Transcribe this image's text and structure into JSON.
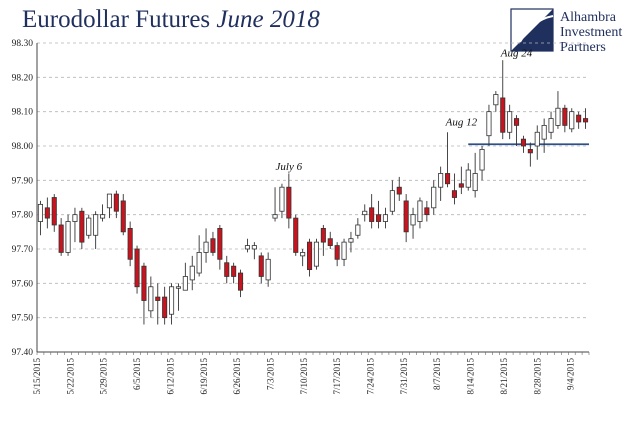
{
  "header": {
    "title_main": "Eurodollar Futures",
    "title_em": "June 2018"
  },
  "logo": {
    "line1": "Alhambra",
    "line2": "Investment",
    "line3": "Partners"
  },
  "colors": {
    "up": "#ffffff",
    "down": "#c8141e",
    "wick": "#333333",
    "grid": "#b5b5b5",
    "refline": "#2f4f8a",
    "text": "#1f2f5e"
  },
  "chart_data": {
    "type": "candlestick",
    "ylim": [
      97.4,
      98.3
    ],
    "yticks": [
      "97.40",
      "97.50",
      "97.60",
      "97.70",
      "97.80",
      "97.90",
      "98.00",
      "98.10",
      "98.20",
      "98.30"
    ],
    "xlabels": [
      "5/15/2015",
      "5/22/2015",
      "5/29/2015",
      "6/5/2015",
      "6/12/2015",
      "6/19/2015",
      "6/26/2015",
      "7/3/2015",
      "7/10/2015",
      "7/17/2015",
      "7/24/2015",
      "7/31/2015",
      "8/7/2015",
      "8/14/2015",
      "8/21/2015",
      "8/28/2015",
      "9/4/2015"
    ],
    "reference_line": {
      "y": 98.005,
      "x_from_session": 62
    },
    "annotations": [
      {
        "text": "July 6",
        "session": 36,
        "y": 97.93
      },
      {
        "text": "Aug 12",
        "session": 61,
        "y": 98.06
      },
      {
        "text": "Aug 24",
        "session": 69,
        "y": 98.26
      }
    ],
    "candles": [
      {
        "o": 97.78,
        "h": 97.84,
        "l": 97.74,
        "c": 97.83
      },
      {
        "o": 97.82,
        "h": 97.85,
        "l": 97.76,
        "c": 97.79
      },
      {
        "o": 97.85,
        "h": 97.86,
        "l": 97.75,
        "c": 97.77
      },
      {
        "o": 97.77,
        "h": 97.79,
        "l": 97.68,
        "c": 97.69
      },
      {
        "o": 97.69,
        "h": 97.8,
        "l": 97.68,
        "c": 97.78
      },
      {
        "o": 97.78,
        "h": 97.82,
        "l": 97.72,
        "c": 97.8
      },
      {
        "o": 97.81,
        "h": 97.82,
        "l": 97.7,
        "c": 97.72
      },
      {
        "o": 97.74,
        "h": 97.8,
        "l": 97.73,
        "c": 97.79
      },
      {
        "o": 97.74,
        "h": 97.81,
        "l": 97.7,
        "c": 97.8
      },
      {
        "o": 97.79,
        "h": 97.83,
        "l": 97.78,
        "c": 97.8
      },
      {
        "o": 97.82,
        "h": 97.86,
        "l": 97.79,
        "c": 97.86
      },
      {
        "o": 97.86,
        "h": 97.87,
        "l": 97.79,
        "c": 97.81
      },
      {
        "o": 97.84,
        "h": 97.86,
        "l": 97.74,
        "c": 97.75
      },
      {
        "o": 97.76,
        "h": 97.78,
        "l": 97.65,
        "c": 97.67
      },
      {
        "o": 97.7,
        "h": 97.71,
        "l": 97.57,
        "c": 97.59
      },
      {
        "o": 97.65,
        "h": 97.66,
        "l": 97.48,
        "c": 97.55
      },
      {
        "o": 97.52,
        "h": 97.62,
        "l": 97.5,
        "c": 97.59
      },
      {
        "o": 97.56,
        "h": 97.6,
        "l": 97.48,
        "c": 97.55
      },
      {
        "o": 97.56,
        "h": 97.59,
        "l": 97.48,
        "c": 97.5
      },
      {
        "o": 97.51,
        "h": 97.6,
        "l": 97.48,
        "c": 97.59
      },
      {
        "o": 97.59,
        "h": 97.6,
        "l": 97.52,
        "c": 97.59
      },
      {
        "o": 97.58,
        "h": 97.66,
        "l": 97.58,
        "c": 97.62
      },
      {
        "o": 97.61,
        "h": 97.68,
        "l": 97.58,
        "c": 97.65
      },
      {
        "o": 97.63,
        "h": 97.74,
        "l": 97.62,
        "c": 97.69
      },
      {
        "o": 97.69,
        "h": 97.76,
        "l": 97.66,
        "c": 97.72
      },
      {
        "o": 97.73,
        "h": 97.75,
        "l": 97.68,
        "c": 97.69
      },
      {
        "o": 97.76,
        "h": 97.77,
        "l": 97.64,
        "c": 97.67
      },
      {
        "o": 97.66,
        "h": 97.68,
        "l": 97.6,
        "c": 97.62
      },
      {
        "o": 97.65,
        "h": 97.66,
        "l": 97.6,
        "c": 97.62
      },
      {
        "o": 97.63,
        "h": 97.64,
        "l": 97.56,
        "c": 97.58
      },
      {
        "o": 97.7,
        "h": 97.73,
        "l": 97.69,
        "c": 97.71
      },
      {
        "o": 97.7,
        "h": 97.72,
        "l": 97.67,
        "c": 97.71
      },
      {
        "o": 97.68,
        "h": 97.69,
        "l": 97.6,
        "c": 97.62
      },
      {
        "o": 97.61,
        "h": 97.69,
        "l": 97.59,
        "c": 97.67
      },
      {
        "o": 97.79,
        "h": 97.88,
        "l": 97.78,
        "c": 97.8
      },
      {
        "o": 97.81,
        "h": 97.89,
        "l": 97.79,
        "c": 97.88
      },
      {
        "o": 97.88,
        "h": 97.92,
        "l": 97.76,
        "c": 97.79
      },
      {
        "o": 97.79,
        "h": 97.8,
        "l": 97.68,
        "c": 97.69
      },
      {
        "o": 97.68,
        "h": 97.7,
        "l": 97.65,
        "c": 97.69
      },
      {
        "o": 97.72,
        "h": 97.73,
        "l": 97.62,
        "c": 97.64
      },
      {
        "o": 97.65,
        "h": 97.73,
        "l": 97.64,
        "c": 97.72
      },
      {
        "o": 97.76,
        "h": 97.77,
        "l": 97.68,
        "c": 97.72
      },
      {
        "o": 97.73,
        "h": 97.75,
        "l": 97.7,
        "c": 97.71
      },
      {
        "o": 97.71,
        "h": 97.72,
        "l": 97.65,
        "c": 97.67
      },
      {
        "o": 97.67,
        "h": 97.73,
        "l": 97.65,
        "c": 97.72
      },
      {
        "o": 97.72,
        "h": 97.75,
        "l": 97.69,
        "c": 97.73
      },
      {
        "o": 97.74,
        "h": 97.79,
        "l": 97.73,
        "c": 97.77
      },
      {
        "o": 97.8,
        "h": 97.83,
        "l": 97.78,
        "c": 97.81
      },
      {
        "o": 97.82,
        "h": 97.86,
        "l": 97.76,
        "c": 97.78
      },
      {
        "o": 97.8,
        "h": 97.84,
        "l": 97.76,
        "c": 97.78
      },
      {
        "o": 97.78,
        "h": 97.82,
        "l": 97.76,
        "c": 97.8
      },
      {
        "o": 97.81,
        "h": 97.9,
        "l": 97.8,
        "c": 97.87
      },
      {
        "o": 97.88,
        "h": 97.91,
        "l": 97.84,
        "c": 97.86
      },
      {
        "o": 97.84,
        "h": 97.86,
        "l": 97.72,
        "c": 97.75
      },
      {
        "o": 97.77,
        "h": 97.82,
        "l": 97.73,
        "c": 97.8
      },
      {
        "o": 97.78,
        "h": 97.85,
        "l": 97.76,
        "c": 97.84
      },
      {
        "o": 97.82,
        "h": 97.84,
        "l": 97.78,
        "c": 97.8
      },
      {
        "o": 97.82,
        "h": 97.9,
        "l": 97.8,
        "c": 97.88
      },
      {
        "o": 97.88,
        "h": 97.94,
        "l": 97.84,
        "c": 97.92
      },
      {
        "o": 97.92,
        "h": 98.04,
        "l": 97.88,
        "c": 97.89
      },
      {
        "o": 97.87,
        "h": 97.92,
        "l": 97.83,
        "c": 97.85
      },
      {
        "o": 97.89,
        "h": 97.94,
        "l": 97.86,
        "c": 97.88
      },
      {
        "o": 97.88,
        "h": 97.95,
        "l": 97.87,
        "c": 97.93
      },
      {
        "o": 97.87,
        "h": 97.98,
        "l": 97.85,
        "c": 97.92
      },
      {
        "o": 97.93,
        "h": 98.0,
        "l": 97.9,
        "c": 97.99
      },
      {
        "o": 98.03,
        "h": 98.12,
        "l": 98.0,
        "c": 98.1
      },
      {
        "o": 98.12,
        "h": 98.16,
        "l": 98.1,
        "c": 98.15
      },
      {
        "o": 98.14,
        "h": 98.25,
        "l": 98.02,
        "c": 98.04
      },
      {
        "o": 98.04,
        "h": 98.12,
        "l": 98.02,
        "c": 98.1
      },
      {
        "o": 98.08,
        "h": 98.09,
        "l": 98.0,
        "c": 98.06
      },
      {
        "o": 98.02,
        "h": 98.03,
        "l": 97.98,
        "c": 98.0
      },
      {
        "o": 97.99,
        "h": 98.01,
        "l": 97.94,
        "c": 97.98
      },
      {
        "o": 98.0,
        "h": 98.06,
        "l": 97.96,
        "c": 98.04
      },
      {
        "o": 98.02,
        "h": 98.08,
        "l": 97.98,
        "c": 98.06
      },
      {
        "o": 98.04,
        "h": 98.1,
        "l": 98.02,
        "c": 98.08
      },
      {
        "o": 98.06,
        "h": 98.16,
        "l": 98.05,
        "c": 98.11
      },
      {
        "o": 98.11,
        "h": 98.12,
        "l": 98.04,
        "c": 98.06
      },
      {
        "o": 98.05,
        "h": 98.11,
        "l": 98.04,
        "c": 98.1
      },
      {
        "o": 98.09,
        "h": 98.1,
        "l": 98.05,
        "c": 98.07
      },
      {
        "o": 98.08,
        "h": 98.11,
        "l": 98.05,
        "c": 98.07
      }
    ]
  }
}
